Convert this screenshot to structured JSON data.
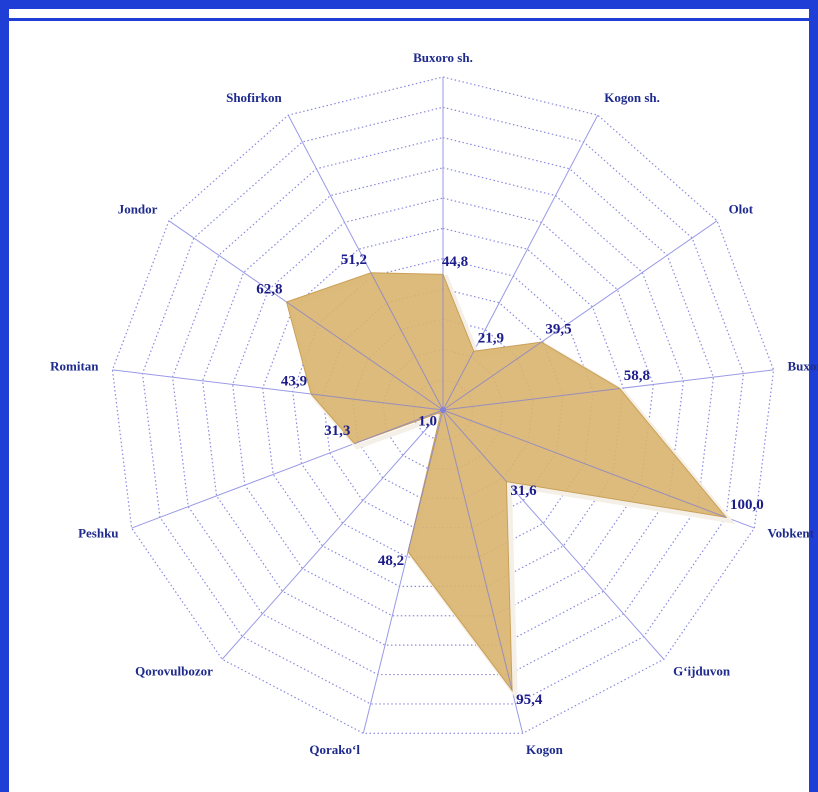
{
  "chart_data": {
    "type": "radar",
    "categories": [
      "Buxoro sh.",
      "Kogon sh.",
      "Olot",
      "Buxoro",
      "Vobkent",
      "G‘ijduvon",
      "Kogon",
      "Qorako‘l",
      "Qorovulbozor",
      "Peshku",
      "Romitan",
      "Jondor",
      "Shofirkon"
    ],
    "values": [
      44.8,
      21.9,
      39.5,
      58.8,
      100.0,
      31.6,
      95.4,
      48.2,
      1.0,
      31.3,
      43.9,
      62.8,
      51.2
    ],
    "value_labels": [
      "44,8",
      "21,9",
      "39,5",
      "58,8",
      "100,0",
      "31,6",
      "95,4",
      "48,2",
      "1,0",
      "31,3",
      "43,9",
      "62,8",
      "51,2"
    ],
    "color": "#d9b46e",
    "rlim": [
      0,
      110
    ],
    "rticks": [
      10,
      20,
      30,
      40,
      50,
      60,
      70,
      80,
      90,
      100,
      110
    ],
    "grid": true
  }
}
